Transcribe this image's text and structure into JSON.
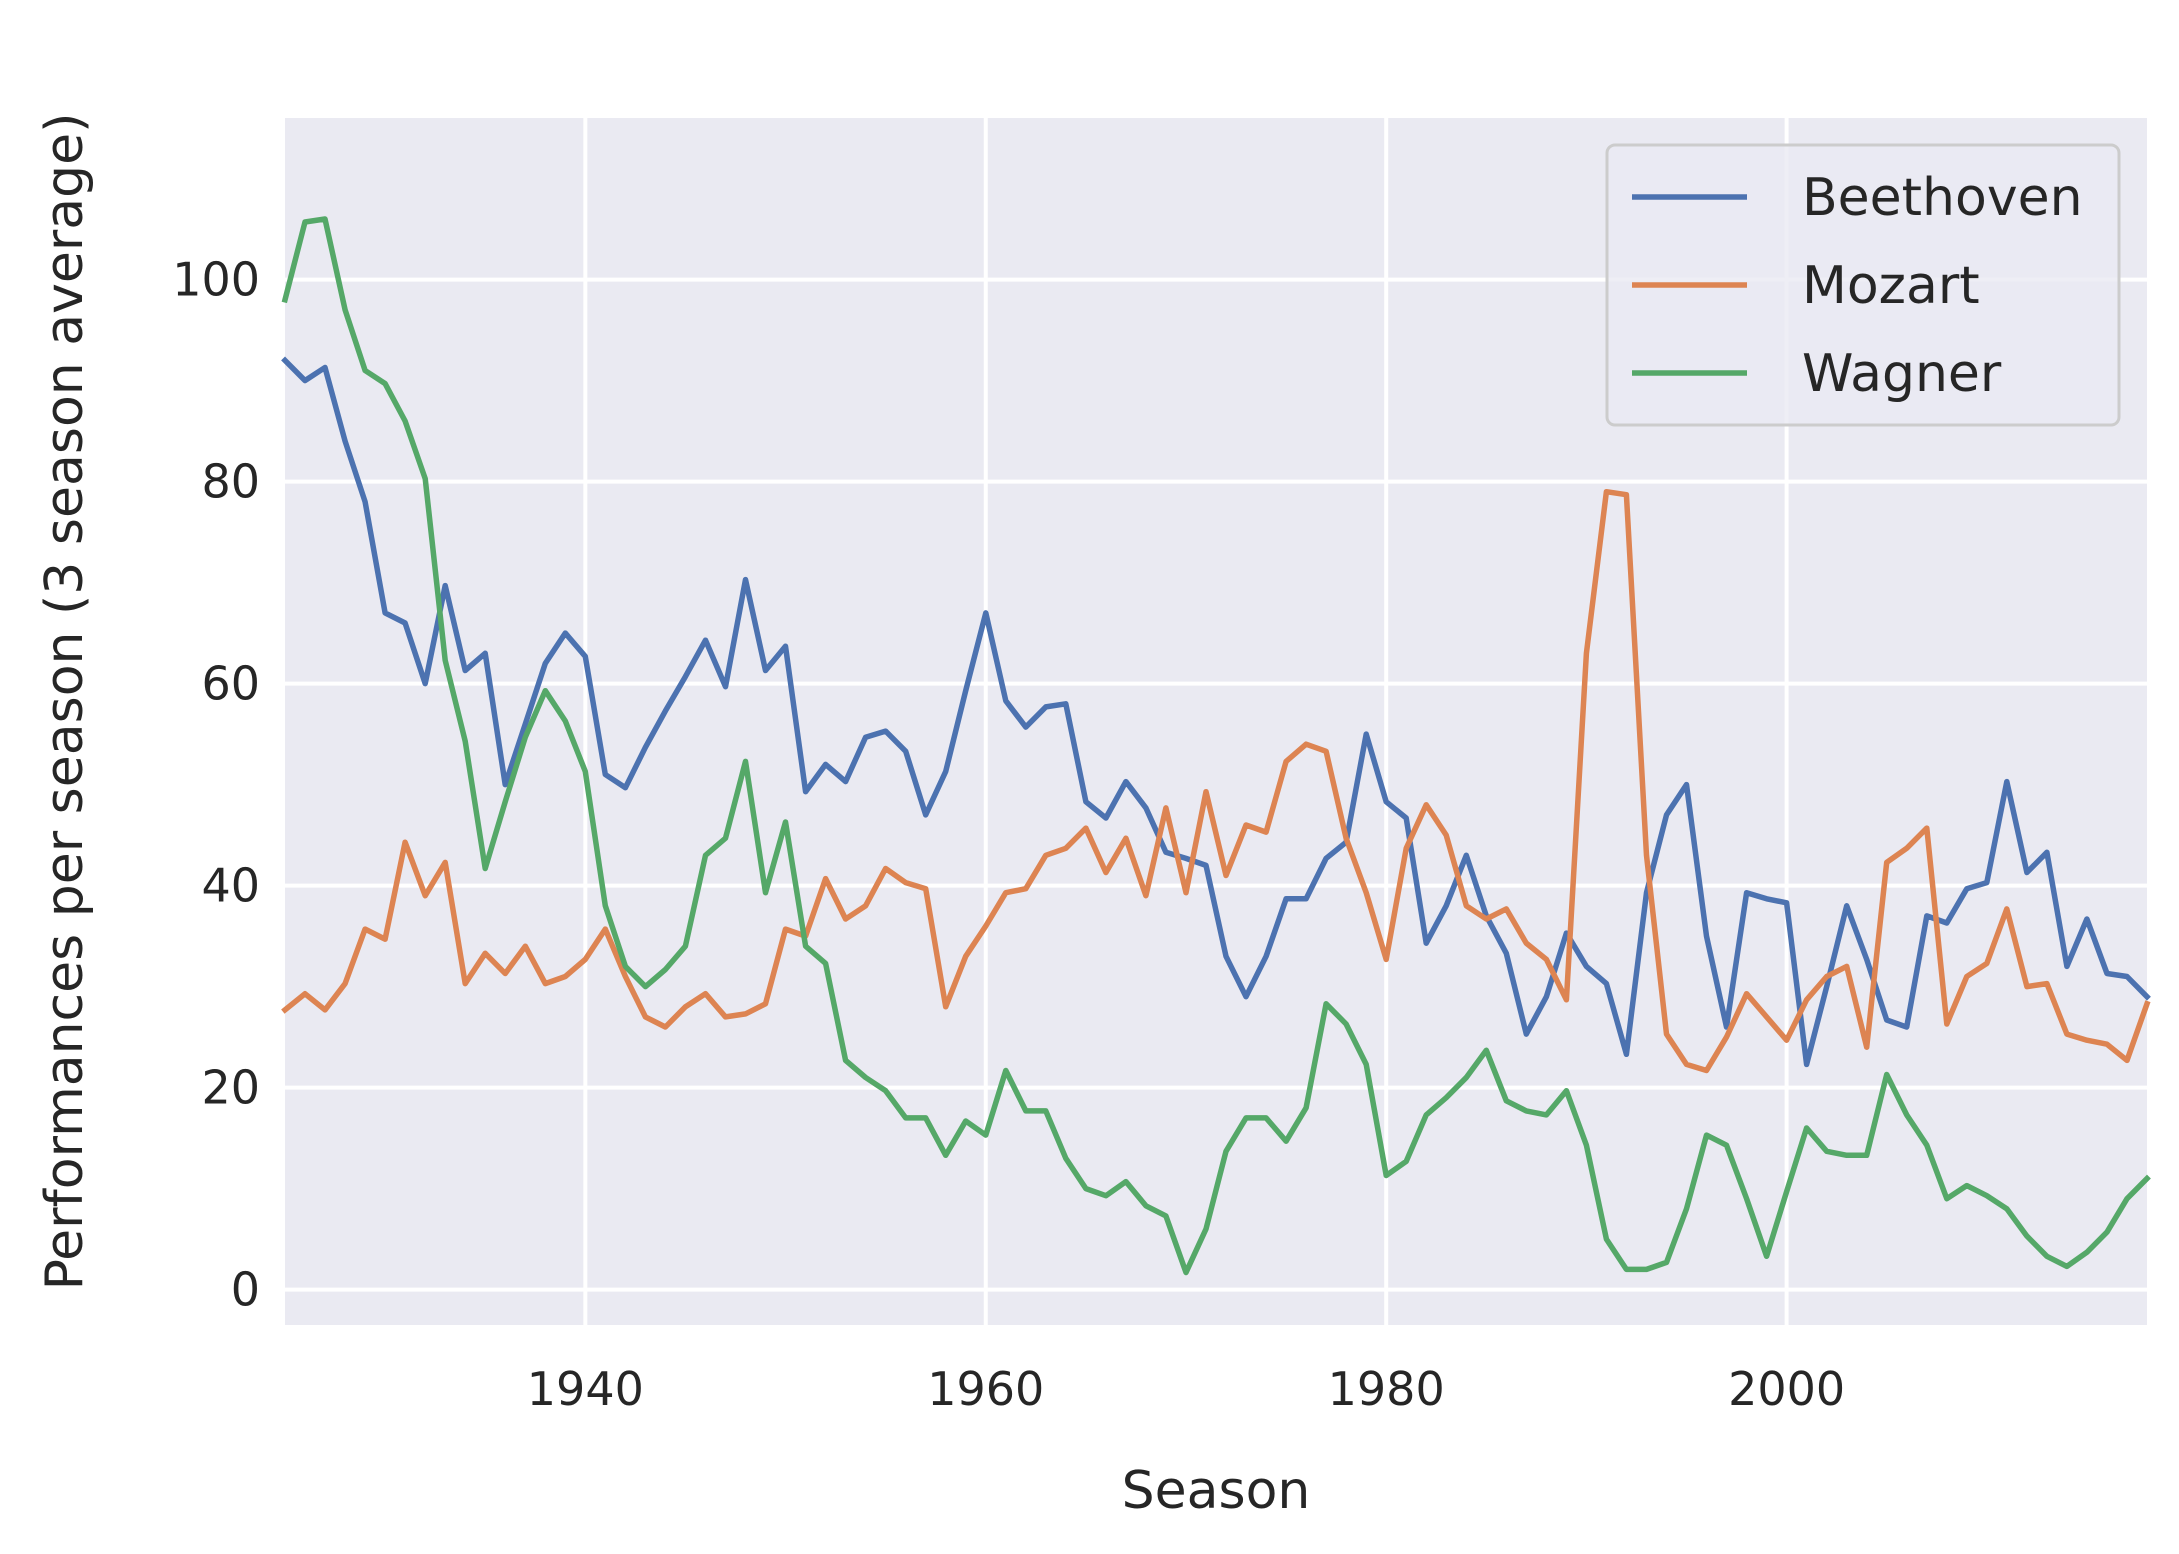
{
  "chart_data": {
    "type": "line",
    "xlabel": "Season",
    "ylabel": "Performances per season (3 season average)",
    "xlim": [
      1925,
      2018
    ],
    "ylim": [
      -3.5,
      116
    ],
    "xticks": [
      1940,
      1960,
      1980,
      2000
    ],
    "yticks": [
      0,
      20,
      40,
      60,
      80,
      100
    ],
    "grid": true,
    "legend_position": "top-right",
    "background": "#EAEAF2",
    "x_start": 1925,
    "series": [
      {
        "name": "Beethoven",
        "color": "#4C72B0",
        "values": [
          92,
          90,
          91.3,
          84,
          78,
          67,
          66,
          60,
          69.7,
          61.3,
          63,
          50,
          56,
          62,
          65,
          62.7,
          51,
          49.7,
          53.7,
          57.3,
          60.7,
          64.3,
          59.7,
          70.3,
          61.3,
          63.7,
          49.3,
          52,
          50.3,
          54.7,
          55.3,
          53.3,
          47,
          51.3,
          59.3,
          67,
          58.3,
          55.7,
          57.7,
          58,
          48.3,
          46.7,
          50.3,
          47.7,
          43.3,
          42.7,
          42,
          33,
          29,
          33,
          38.7,
          38.7,
          42.7,
          44.3,
          55,
          48.3,
          46.7,
          34.3,
          38,
          43,
          37,
          33.3,
          25.3,
          29,
          35.3,
          32,
          30.3,
          23.3,
          39.3,
          47,
          50,
          35,
          26,
          39.3,
          38.7,
          38.3,
          22.3,
          30,
          38,
          32.7,
          26.7,
          26,
          37,
          36.3,
          39.7,
          40.3,
          50.3,
          41.3,
          43.3,
          32,
          36.7,
          31.3,
          31,
          29
        ]
      },
      {
        "name": "Mozart",
        "color": "#DD8452",
        "values": [
          27.7,
          29.3,
          27.7,
          30.3,
          35.7,
          34.7,
          44.3,
          39,
          42.3,
          30.3,
          33.3,
          31.3,
          34,
          30.3,
          31,
          32.7,
          35.7,
          31,
          27,
          26,
          28,
          29.3,
          27,
          27.3,
          28.3,
          35.7,
          35,
          40.7,
          36.7,
          38,
          41.7,
          40.3,
          39.7,
          28,
          33,
          36,
          39.3,
          39.7,
          43,
          43.7,
          45.7,
          41.3,
          44.7,
          39,
          47.7,
          39.3,
          49.3,
          41,
          46,
          45.3,
          52.3,
          54,
          53.3,
          44.7,
          39.3,
          32.7,
          43.7,
          48,
          45,
          38,
          36.7,
          37.7,
          34.3,
          32.7,
          28.7,
          63,
          79,
          78.7,
          43,
          25.3,
          22.3,
          21.7,
          25,
          29.3,
          27,
          24.7,
          28.7,
          31,
          32,
          24,
          42.3,
          43.7,
          45.7,
          26.3,
          31,
          32.3,
          37.7,
          30,
          30.3,
          25.3,
          24.7,
          24.3,
          22.7,
          28.3
        ]
      },
      {
        "name": "Wagner",
        "color": "#55A868",
        "values": [
          98,
          105.7,
          106,
          97,
          91,
          89.7,
          86,
          80.3,
          62.3,
          54.3,
          41.7,
          48.3,
          54.7,
          59.3,
          56.3,
          51.3,
          38,
          32,
          30,
          31.7,
          34,
          43,
          44.7,
          52.3,
          39.3,
          46.3,
          34,
          32.3,
          22.7,
          21,
          19.7,
          17,
          17,
          13.3,
          16.7,
          15.3,
          21.7,
          17.7,
          17.7,
          13,
          10,
          9.3,
          10.7,
          8.3,
          7.3,
          1.7,
          6,
          13.7,
          17,
          17,
          14.7,
          18,
          28.3,
          26.3,
          22.3,
          11.3,
          12.7,
          17.3,
          19,
          21,
          23.7,
          18.7,
          17.7,
          17.3,
          19.7,
          14.3,
          5,
          2,
          2,
          2.7,
          8,
          15.3,
          14.3,
          9,
          3.3,
          9.7,
          16,
          13.7,
          13.3,
          13.3,
          21.3,
          17.3,
          14.3,
          9,
          10.3,
          9.3,
          8,
          5.3,
          3.3,
          2.3,
          3.7,
          5.7,
          9,
          11
        ]
      }
    ]
  }
}
